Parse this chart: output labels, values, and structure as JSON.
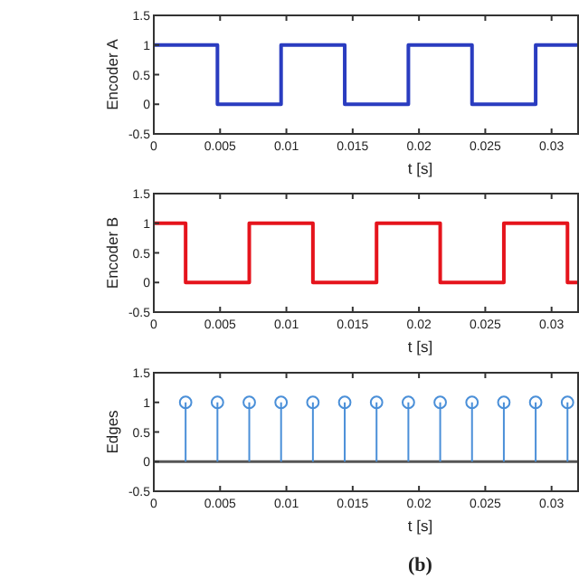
{
  "chart_data": [
    {
      "type": "step",
      "ylabel": "Encoder A",
      "xlabel": "t [s]",
      "x": [
        0,
        0.0048,
        0.0096,
        0.0144,
        0.0192,
        0.024,
        0.0288,
        0.032
      ],
      "values": [
        1,
        0,
        1,
        0,
        1,
        0,
        1,
        1
      ],
      "color": "#2a3cc0",
      "xlim": [
        0,
        0.032
      ],
      "xticks": [
        0,
        0.005,
        0.01,
        0.015,
        0.02,
        0.025,
        0.03
      ],
      "ylim": [
        -0.5,
        1.5
      ],
      "yticks": [
        -0.5,
        0,
        0.5,
        1,
        1.5
      ]
    },
    {
      "type": "step",
      "ylabel": "Encoder B",
      "xlabel": "t [s]",
      "x": [
        0,
        0.0024,
        0.0072,
        0.012,
        0.0168,
        0.0216,
        0.0264,
        0.0312,
        0.032
      ],
      "values": [
        1,
        0,
        1,
        0,
        1,
        0,
        1,
        0,
        0
      ],
      "color": "#e5141c",
      "xlim": [
        0,
        0.032
      ],
      "xticks": [
        0,
        0.005,
        0.01,
        0.015,
        0.02,
        0.025,
        0.03
      ],
      "ylim": [
        -0.5,
        1.5
      ],
      "yticks": [
        -0.5,
        0,
        0.5,
        1,
        1.5
      ]
    },
    {
      "type": "lollipop",
      "ylabel": "Edges",
      "xlabel": "t [s]",
      "x": [
        0.0024,
        0.0048,
        0.0072,
        0.0096,
        0.012,
        0.0144,
        0.0168,
        0.0192,
        0.0216,
        0.024,
        0.0264,
        0.0288,
        0.0312
      ],
      "values": [
        1,
        1,
        1,
        1,
        1,
        1,
        1,
        1,
        1,
        1,
        1,
        1,
        1
      ],
      "color": "#4a8fd8",
      "marker": "circle",
      "ref_lines": [
        {
          "axis": "y",
          "value": 0,
          "color": "#555555"
        }
      ],
      "xlim": [
        0,
        0.032
      ],
      "xticks": [
        0,
        0.005,
        0.01,
        0.015,
        0.02,
        0.025,
        0.03
      ],
      "ylim": [
        -0.5,
        1.5
      ],
      "yticks": [
        -0.5,
        0,
        0.5,
        1,
        1.5
      ],
      "annotations": [
        "(b)"
      ]
    }
  ]
}
